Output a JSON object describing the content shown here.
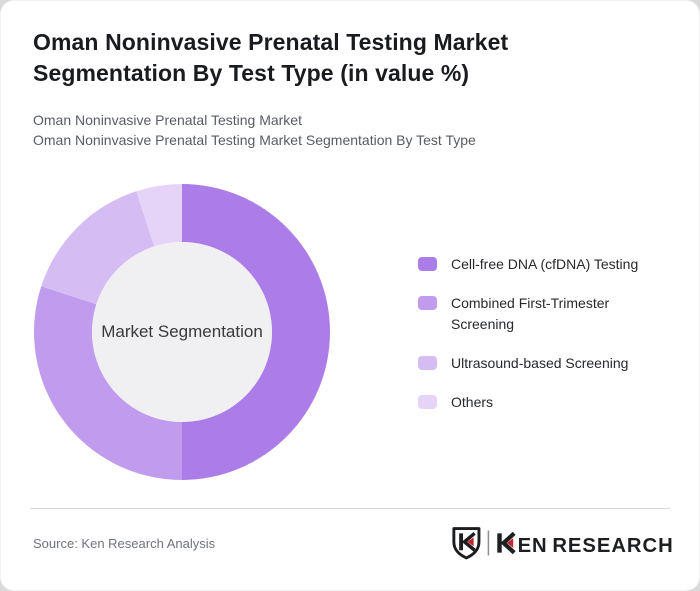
{
  "header": {
    "title": "Oman Noninvasive Prenatal Testing Market Segmentation By Test Type (in value %)",
    "subtitle1": "Oman Noninvasive Prenatal Testing Market",
    "subtitle2": "Oman Noninvasive Prenatal Testing Market Segmentation By Test Type"
  },
  "chart_data": {
    "type": "pie",
    "donut": true,
    "title": "Oman Noninvasive Prenatal Testing Market Segmentation By Test Type (in value %)",
    "units": "%",
    "labels": [
      "Cell-free DNA (cfDNA) Testing",
      "Combined First-Trimester Screening",
      "Ultrasound-based Screening",
      "Others"
    ],
    "values": [
      50,
      30,
      15,
      5
    ],
    "colors": [
      "#ac7de9",
      "#c09bee",
      "#d5bdf3",
      "#e5d4f8"
    ],
    "hole_color": "#f0eff1",
    "center_label": "Market Segmentation",
    "legend_position": "right"
  },
  "footer": {
    "source": "Source: Ken Research Analysis",
    "brand": "KEN RESEARCH",
    "brand_red": "#c1272d",
    "brand_dark": "#1d1f21"
  }
}
